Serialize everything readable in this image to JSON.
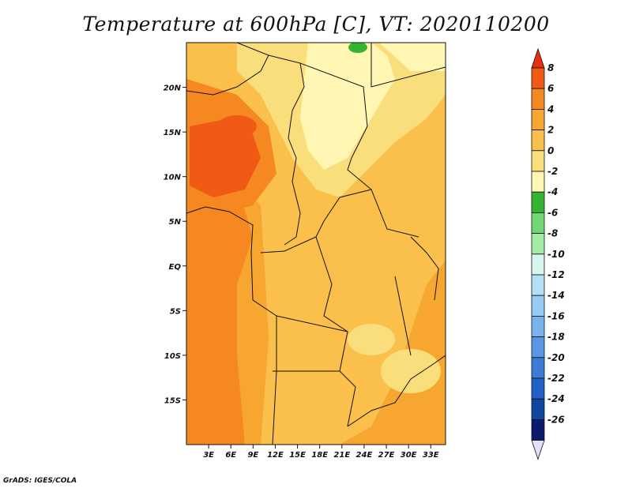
{
  "title": "Temperature at 600hPa [C], VT: 2020110200",
  "footer": "GrADS: IGES/COLA",
  "map": {
    "lon_range": [
      0,
      35
    ],
    "lat_range": [
      -20,
      25
    ],
    "lat_ticks": [
      {
        "lat": 20,
        "label": "20N"
      },
      {
        "lat": 15,
        "label": "15N"
      },
      {
        "lat": 10,
        "label": "10N"
      },
      {
        "lat": 5,
        "label": "5N"
      },
      {
        "lat": 0,
        "label": "EQ"
      },
      {
        "lat": -5,
        "label": "5S"
      },
      {
        "lat": -10,
        "label": "10S"
      },
      {
        "lat": -15,
        "label": "15S"
      }
    ],
    "lon_ticks": [
      {
        "lon": 3,
        "label": "3E"
      },
      {
        "lon": 6,
        "label": "6E"
      },
      {
        "lon": 9,
        "label": "9E"
      },
      {
        "lon": 12,
        "label": "12E"
      },
      {
        "lon": 15,
        "label": "15E"
      },
      {
        "lon": 18,
        "label": "18E"
      },
      {
        "lon": 21,
        "label": "21E"
      },
      {
        "lon": 24,
        "label": "24E"
      },
      {
        "lon": 27,
        "label": "27E"
      },
      {
        "lon": 30,
        "label": "30E"
      },
      {
        "lon": 33,
        "label": "33E"
      }
    ]
  },
  "colorbar": {
    "labels": [
      "8",
      "6",
      "4",
      "2",
      "0",
      "-2",
      "-4",
      "-6",
      "-8",
      "-10",
      "-12",
      "-14",
      "-16",
      "-18",
      "-20",
      "-22",
      "-24",
      "-26"
    ],
    "colors": [
      "#e83010",
      "#f05a14",
      "#f58820",
      "#f7a630",
      "#fbc04c",
      "#fbde7c",
      "#fff6b4",
      "#33b433",
      "#72d772",
      "#a2eba2",
      "#d8f5f0",
      "#b4e0f7",
      "#96cbf5",
      "#78b2ef",
      "#5797e4",
      "#3b7cd8",
      "#2062c8",
      "#10469e",
      "#0a1a6e",
      "#e0e0f8"
    ]
  }
}
